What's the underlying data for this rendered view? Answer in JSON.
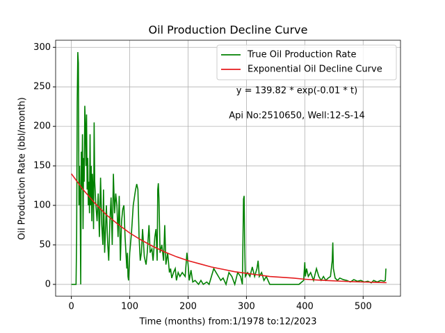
{
  "chart_data": {
    "type": "line",
    "title": "Oil Production Decline Curve",
    "xlabel": "Time (months) from:1/1978 to:12/2023",
    "ylabel": "Oil Production Rate (bbl/month)",
    "annotations": [
      "y = 139.82 * exp(-0.01 * t)",
      "Api No:2510650, Well:12-S-14"
    ],
    "xlim": [
      -27,
      564
    ],
    "ylim": [
      -15,
      309
    ],
    "xticks": [
      0,
      100,
      200,
      300,
      400,
      500
    ],
    "yticks": [
      0,
      50,
      100,
      150,
      200,
      250,
      300
    ],
    "grid": true,
    "legend": "upper right",
    "series": [
      {
        "name": "True Oil Production Rate",
        "color": "#008000",
        "x": [
          0,
          5,
          8,
          9,
          10,
          11,
          12,
          13,
          14,
          15,
          16,
          17,
          18,
          19,
          20,
          21,
          22,
          23,
          24,
          25,
          26,
          27,
          28,
          29,
          30,
          31,
          32,
          33,
          34,
          35,
          36,
          37,
          38,
          39,
          40,
          42,
          44,
          46,
          48,
          50,
          52,
          54,
          55,
          57,
          58,
          60,
          62,
          64,
          66,
          68,
          70,
          72,
          74,
          76,
          78,
          80,
          82,
          84,
          86,
          88,
          90,
          92,
          95,
          96,
          97,
          98,
          100,
          103,
          106,
          110,
          112,
          114,
          116,
          118,
          120,
          122,
          125,
          128,
          130,
          133,
          135,
          138,
          140,
          143,
          145,
          147,
          148,
          149,
          150,
          152,
          155,
          158,
          160,
          162,
          165,
          168,
          170,
          172,
          175,
          178,
          180,
          183,
          186,
          190,
          195,
          198,
          200,
          202,
          205,
          208,
          212,
          218,
          222,
          226,
          232,
          236,
          240,
          244,
          248,
          252,
          256,
          260,
          265,
          270,
          275,
          280,
          285,
          290,
          293,
          295,
          296,
          297,
          298,
          302,
          306,
          310,
          314,
          318,
          320,
          322,
          326,
          330,
          334,
          340,
          350,
          360,
          370,
          380,
          390,
          398,
          400,
          401,
          403,
          406,
          410,
          415,
          420,
          424,
          428,
          432,
          436,
          440,
          444,
          447,
          448,
          449,
          452,
          456,
          460,
          466,
          472,
          478,
          484,
          490,
          496,
          502,
          508,
          514,
          518,
          524,
          530,
          536,
          538,
          539
        ],
        "values": [
          0,
          0,
          0,
          60,
          230,
          294,
          280,
          100,
          150,
          105,
          0,
          168,
          120,
          190,
          70,
          160,
          130,
          226,
          200,
          150,
          215,
          120,
          160,
          100,
          130,
          90,
          190,
          100,
          150,
          80,
          140,
          120,
          70,
          205,
          130,
          100,
          80,
          115,
          60,
          135,
          75,
          50,
          120,
          40,
          60,
          100,
          55,
          30,
          80,
          110,
          50,
          140,
          90,
          115,
          100,
          60,
          112,
          30,
          80,
          95,
          100,
          60,
          20,
          40,
          10,
          5,
          40,
          65,
          100,
          120,
          127,
          120,
          60,
          30,
          40,
          70,
          35,
          25,
          40,
          75,
          40,
          45,
          30,
          60,
          70,
          30,
          120,
          128,
          110,
          40,
          50,
          30,
          75,
          25,
          40,
          15,
          20,
          8,
          15,
          20,
          5,
          15,
          10,
          15,
          10,
          40,
          25,
          5,
          18,
          3,
          5,
          0,
          5,
          0,
          3,
          0,
          10,
          20,
          15,
          10,
          5,
          8,
          0,
          15,
          10,
          0,
          15,
          10,
          0,
          108,
          112,
          50,
          10,
          15,
          10,
          22,
          10,
          20,
          30,
          10,
          15,
          5,
          10,
          0,
          0,
          0,
          0,
          0,
          0,
          5,
          28,
          10,
          20,
          10,
          15,
          5,
          20,
          10,
          5,
          10,
          5,
          8,
          10,
          30,
          53,
          20,
          8,
          5,
          8,
          6,
          5,
          3,
          6,
          4,
          5,
          3,
          4,
          2,
          5,
          3,
          5,
          4,
          5,
          20
        ]
      },
      {
        "name": "Exponential Oil Decline Curve",
        "color": "#e41a1c",
        "x": [
          0,
          20,
          40,
          60,
          80,
          100,
          120,
          140,
          160,
          180,
          200,
          220,
          240,
          260,
          280,
          300,
          320,
          340,
          360,
          380,
          400,
          420,
          440,
          460,
          480,
          500,
          520,
          540
        ],
        "values": [
          140,
          120,
          103,
          88,
          76,
          65,
          56,
          48,
          41,
          35,
          30,
          26,
          22,
          19,
          16,
          14,
          12,
          10,
          9,
          8,
          6.5,
          5.6,
          4.8,
          4.1,
          3.5,
          3,
          2.6,
          2.2
        ]
      }
    ]
  }
}
